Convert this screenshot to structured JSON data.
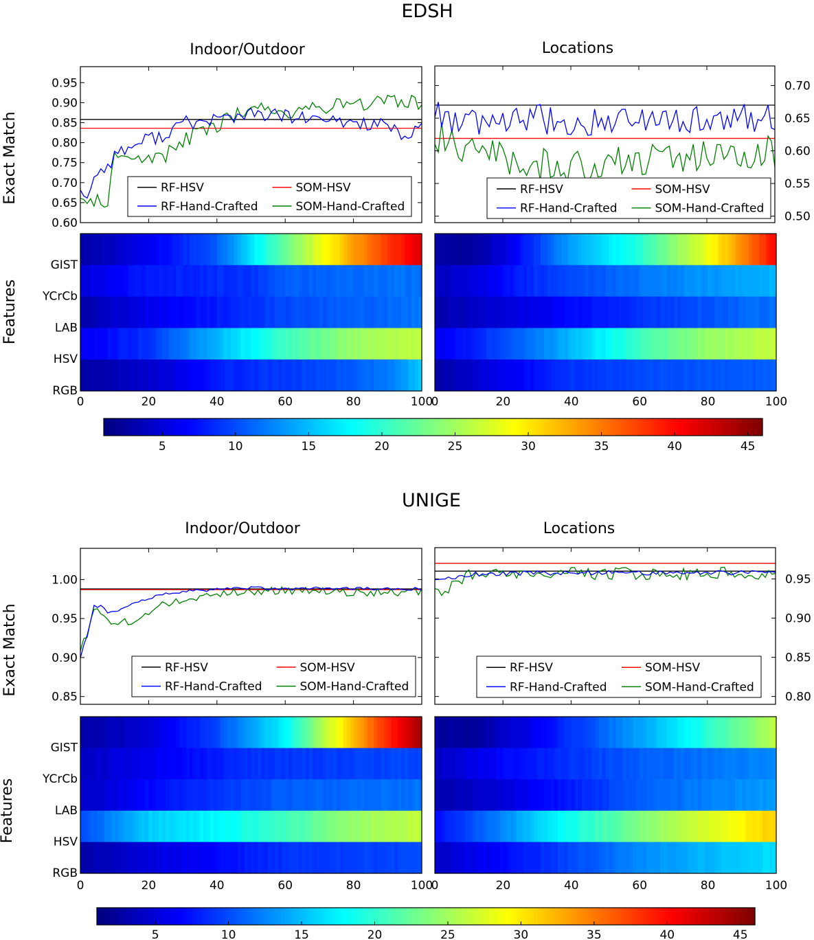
{
  "chart_data": [
    {
      "type": "line",
      "title": "EDSH",
      "subtitle": "Indoor/Outdoor",
      "ylabel": "Exact Match",
      "xlim": [
        0,
        100
      ],
      "ylim": [
        0.6,
        0.99
      ],
      "yticks": [
        0.6,
        0.65,
        0.7,
        0.75,
        0.8,
        0.85,
        0.9,
        0.95
      ],
      "ytick_labels": [
        "0.60",
        "0.65",
        "0.70",
        "0.75",
        "0.80",
        "0.85",
        "0.90",
        "0.95"
      ],
      "legend": {
        "placement": "lower-right",
        "entries": [
          "RF-HSV",
          "SOM-HSV",
          "RF-Hand-Crafted",
          "SOM-Hand-Crafted"
        ]
      },
      "colors": {
        "RF-HSV": "#000000",
        "SOM-HSV": "#ff0000",
        "RF-Hand-Crafted": "#0000ff",
        "SOM-Hand-Crafted": "#008000"
      },
      "baselines": {
        "RF-HSV": 0.858,
        "SOM-HSV": 0.836
      },
      "series": [
        {
          "name": "RF-Hand-Crafted",
          "keypoints": [
            [
              0,
              0.69
            ],
            [
              2,
              0.66
            ],
            [
              5,
              0.73
            ],
            [
              8,
              0.74
            ],
            [
              10,
              0.77
            ],
            [
              15,
              0.79
            ],
            [
              20,
              0.81
            ],
            [
              25,
              0.82
            ],
            [
              30,
              0.85
            ],
            [
              35,
              0.85
            ],
            [
              40,
              0.86
            ],
            [
              45,
              0.865
            ],
            [
              50,
              0.87
            ],
            [
              55,
              0.87
            ],
            [
              60,
              0.865
            ],
            [
              70,
              0.855
            ],
            [
              80,
              0.85
            ],
            [
              90,
              0.845
            ],
            [
              95,
              0.8
            ],
            [
              100,
              0.85
            ]
          ]
        },
        {
          "name": "SOM-Hand-Crafted",
          "keypoints": [
            [
              0,
              0.67
            ],
            [
              3,
              0.64
            ],
            [
              6,
              0.66
            ],
            [
              8,
              0.65
            ],
            [
              10,
              0.77
            ],
            [
              15,
              0.76
            ],
            [
              20,
              0.76
            ],
            [
              25,
              0.77
            ],
            [
              30,
              0.8
            ],
            [
              35,
              0.83
            ],
            [
              40,
              0.84
            ],
            [
              45,
              0.87
            ],
            [
              50,
              0.89
            ],
            [
              55,
              0.885
            ],
            [
              60,
              0.875
            ],
            [
              70,
              0.89
            ],
            [
              80,
              0.9
            ],
            [
              90,
              0.9
            ],
            [
              100,
              0.9
            ]
          ]
        }
      ]
    },
    {
      "type": "line",
      "subtitle": "Locations",
      "xlim": [
        0,
        100
      ],
      "ylim": [
        0.49,
        0.73
      ],
      "yticks": [
        0.5,
        0.55,
        0.6,
        0.65,
        0.7
      ],
      "ytick_labels": [
        "0.50",
        "0.55",
        "0.60",
        "0.65",
        "0.70"
      ],
      "legend": {
        "placement": "lower-right",
        "entries": [
          "RF-HSV",
          "SOM-HSV",
          "RF-Hand-Crafted",
          "SOM-Hand-Crafted"
        ]
      },
      "baselines": {
        "RF-HSV": 0.67,
        "SOM-HSV": 0.619
      },
      "series": [
        {
          "name": "RF-Hand-Crafted",
          "keypoints": [
            [
              0,
              0.66
            ],
            [
              5,
              0.65
            ],
            [
              10,
              0.64
            ],
            [
              20,
              0.645
            ],
            [
              30,
              0.65
            ],
            [
              40,
              0.64
            ],
            [
              50,
              0.65
            ],
            [
              60,
              0.65
            ],
            [
              70,
              0.65
            ],
            [
              80,
              0.645
            ],
            [
              90,
              0.65
            ],
            [
              100,
              0.65
            ]
          ]
        },
        {
          "name": "SOM-Hand-Crafted",
          "keypoints": [
            [
              0,
              0.62
            ],
            [
              5,
              0.62
            ],
            [
              10,
              0.6
            ],
            [
              20,
              0.59
            ],
            [
              30,
              0.58
            ],
            [
              40,
              0.575
            ],
            [
              50,
              0.58
            ],
            [
              60,
              0.585
            ],
            [
              70,
              0.59
            ],
            [
              80,
              0.59
            ],
            [
              90,
              0.595
            ],
            [
              100,
              0.6
            ]
          ]
        }
      ]
    },
    {
      "type": "heatmap",
      "ylabel": "Features",
      "rows": [
        "GIST",
        "YCrCb",
        "LAB",
        "HSV",
        "RGB"
      ],
      "xticks": [
        0,
        20,
        40,
        60,
        80,
        100
      ],
      "row_profiles": [
        [
          [
            0,
            1.5
          ],
          [
            20,
            5
          ],
          [
            40,
            10
          ],
          [
            60,
            22
          ],
          [
            80,
            33
          ],
          [
            100,
            42
          ]
        ],
        [
          [
            0,
            4
          ],
          [
            20,
            7
          ],
          [
            50,
            8
          ],
          [
            60,
            10
          ],
          [
            100,
            11
          ]
        ],
        [
          [
            0,
            2
          ],
          [
            20,
            5
          ],
          [
            40,
            7
          ],
          [
            60,
            9
          ],
          [
            100,
            11
          ]
        ],
        [
          [
            0,
            5
          ],
          [
            20,
            8
          ],
          [
            40,
            14
          ],
          [
            60,
            20
          ],
          [
            80,
            24
          ],
          [
            100,
            26
          ]
        ],
        [
          [
            0,
            1.5
          ],
          [
            25,
            4
          ],
          [
            40,
            7
          ],
          [
            70,
            9
          ],
          [
            90,
            11
          ],
          [
            100,
            15
          ]
        ]
      ]
    },
    {
      "type": "heatmap",
      "rows": [
        "GIST",
        "YCrCb",
        "LAB",
        "HSV",
        "RGB"
      ],
      "xticks": [
        0,
        20,
        40,
        60,
        80,
        100
      ],
      "row_profiles": [
        [
          [
            0,
            1.5
          ],
          [
            10,
            1
          ],
          [
            20,
            4
          ],
          [
            40,
            13
          ],
          [
            60,
            19
          ],
          [
            80,
            28
          ],
          [
            100,
            40
          ]
        ],
        [
          [
            0,
            3
          ],
          [
            10,
            4
          ],
          [
            30,
            8
          ],
          [
            60,
            11
          ],
          [
            100,
            14
          ]
        ],
        [
          [
            0,
            2
          ],
          [
            20,
            4
          ],
          [
            40,
            6
          ],
          [
            60,
            8
          ],
          [
            100,
            11
          ]
        ],
        [
          [
            0,
            5
          ],
          [
            20,
            9
          ],
          [
            40,
            14
          ],
          [
            60,
            20
          ],
          [
            80,
            24
          ],
          [
            100,
            26
          ]
        ],
        [
          [
            0,
            1.5
          ],
          [
            20,
            5
          ],
          [
            40,
            8
          ],
          [
            60,
            9
          ],
          [
            100,
            10
          ]
        ]
      ]
    },
    {
      "type": "colorbar",
      "range": [
        1,
        46
      ],
      "ticks": [
        5,
        10,
        15,
        20,
        25,
        30,
        35,
        40,
        45
      ]
    },
    {
      "type": "line",
      "title": "UNIGE",
      "subtitle": "Indoor/Outdoor",
      "ylabel": "Exact Match",
      "xlim": [
        0,
        100
      ],
      "ylim": [
        0.84,
        1.04
      ],
      "yticks": [
        0.85,
        0.9,
        0.95,
        1.0
      ],
      "ytick_labels": [
        "0.85",
        "0.90",
        "0.95",
        "1.00"
      ],
      "legend": {
        "placement": "lower-right",
        "entries": [
          "RF-HSV",
          "SOM-HSV",
          "RF-Hand-Crafted",
          "SOM-Hand-Crafted"
        ]
      },
      "baselines": {
        "RF-HSV": 0.988,
        "SOM-HSV": 0.987
      },
      "series": [
        {
          "name": "RF-Hand-Crafted",
          "keypoints": [
            [
              0,
              0.9
            ],
            [
              2,
              0.93
            ],
            [
              4,
              0.965
            ],
            [
              6,
              0.965
            ],
            [
              8,
              0.958
            ],
            [
              12,
              0.962
            ],
            [
              15,
              0.97
            ],
            [
              20,
              0.975
            ],
            [
              25,
              0.982
            ],
            [
              30,
              0.985
            ],
            [
              40,
              0.987
            ],
            [
              50,
              0.989
            ],
            [
              60,
              0.988
            ],
            [
              70,
              0.989
            ],
            [
              80,
              0.988
            ],
            [
              90,
              0.988
            ],
            [
              100,
              0.988
            ]
          ]
        },
        {
          "name": "SOM-Hand-Crafted",
          "keypoints": [
            [
              0,
              0.91
            ],
            [
              2,
              0.93
            ],
            [
              4,
              0.96
            ],
            [
              6,
              0.955
            ],
            [
              8,
              0.945
            ],
            [
              12,
              0.948
            ],
            [
              15,
              0.945
            ],
            [
              20,
              0.955
            ],
            [
              25,
              0.97
            ],
            [
              30,
              0.975
            ],
            [
              35,
              0.978
            ],
            [
              40,
              0.982
            ],
            [
              50,
              0.985
            ],
            [
              60,
              0.986
            ],
            [
              70,
              0.985
            ],
            [
              80,
              0.983
            ],
            [
              90,
              0.984
            ],
            [
              100,
              0.984
            ]
          ]
        }
      ]
    },
    {
      "type": "line",
      "subtitle": "Locations",
      "xlim": [
        0,
        100
      ],
      "ylim": [
        0.79,
        0.99
      ],
      "yticks": [
        0.8,
        0.85,
        0.9,
        0.95
      ],
      "ytick_labels": [
        "0.80",
        "0.85",
        "0.90",
        "0.95"
      ],
      "legend": {
        "placement": "lower-right",
        "entries": [
          "RF-HSV",
          "SOM-HSV",
          "RF-Hand-Crafted",
          "SOM-Hand-Crafted"
        ]
      },
      "baselines": {
        "RF-HSV": 0.96,
        "SOM-HSV": 0.97
      },
      "series": [
        {
          "name": "RF-Hand-Crafted",
          "keypoints": [
            [
              0,
              0.95
            ],
            [
              5,
              0.952
            ],
            [
              10,
              0.956
            ],
            [
              20,
              0.957
            ],
            [
              40,
              0.958
            ],
            [
              60,
              0.958
            ],
            [
              80,
              0.958
            ],
            [
              100,
              0.958
            ]
          ]
        },
        {
          "name": "SOM-Hand-Crafted",
          "keypoints": [
            [
              0,
              0.94
            ],
            [
              3,
              0.93
            ],
            [
              6,
              0.945
            ],
            [
              10,
              0.955
            ],
            [
              20,
              0.955
            ],
            [
              40,
              0.957
            ],
            [
              60,
              0.957
            ],
            [
              80,
              0.957
            ],
            [
              100,
              0.958
            ]
          ]
        }
      ]
    },
    {
      "type": "heatmap",
      "ylabel": "Features",
      "rows": [
        "GIST",
        "YCrCb",
        "LAB",
        "HSV",
        "RGB"
      ],
      "xticks": [
        0,
        20,
        40,
        60,
        80,
        100
      ],
      "row_profiles": [
        [
          [
            0,
            1.5
          ],
          [
            20,
            4
          ],
          [
            40,
            9
          ],
          [
            60,
            17
          ],
          [
            80,
            32
          ],
          [
            100,
            45
          ]
        ],
        [
          [
            0,
            3
          ],
          [
            20,
            5
          ],
          [
            50,
            8
          ],
          [
            100,
            9
          ]
        ],
        [
          [
            0,
            3
          ],
          [
            20,
            6
          ],
          [
            40,
            8
          ],
          [
            60,
            10
          ],
          [
            100,
            11
          ]
        ],
        [
          [
            0,
            9
          ],
          [
            20,
            15
          ],
          [
            40,
            17
          ],
          [
            60,
            20
          ],
          [
            80,
            24
          ],
          [
            100,
            26
          ]
        ],
        [
          [
            0,
            2
          ],
          [
            20,
            4
          ],
          [
            40,
            6
          ],
          [
            60,
            8
          ],
          [
            100,
            9
          ]
        ]
      ]
    },
    {
      "type": "heatmap",
      "rows": [
        "GIST",
        "YCrCb",
        "LAB",
        "HSV",
        "RGB"
      ],
      "xticks": [
        0,
        20,
        40,
        60,
        80,
        100
      ],
      "row_profiles": [
        [
          [
            0,
            1.5
          ],
          [
            10,
            1
          ],
          [
            20,
            3
          ],
          [
            40,
            8
          ],
          [
            60,
            13
          ],
          [
            80,
            19
          ],
          [
            100,
            26
          ]
        ],
        [
          [
            0,
            3
          ],
          [
            20,
            6
          ],
          [
            40,
            8
          ],
          [
            60,
            10
          ],
          [
            100,
            12
          ]
        ],
        [
          [
            0,
            2
          ],
          [
            20,
            4
          ],
          [
            40,
            7
          ],
          [
            60,
            10
          ],
          [
            100,
            13
          ]
        ],
        [
          [
            0,
            6
          ],
          [
            20,
            12
          ],
          [
            40,
            18
          ],
          [
            60,
            23
          ],
          [
            80,
            27
          ],
          [
            100,
            31
          ]
        ],
        [
          [
            0,
            3
          ],
          [
            20,
            6
          ],
          [
            40,
            9
          ],
          [
            60,
            12
          ],
          [
            100,
            16
          ]
        ]
      ]
    },
    {
      "type": "colorbar",
      "range": [
        1,
        46
      ],
      "ticks": [
        5,
        10,
        15,
        20,
        25,
        30,
        35,
        40,
        45
      ]
    }
  ]
}
